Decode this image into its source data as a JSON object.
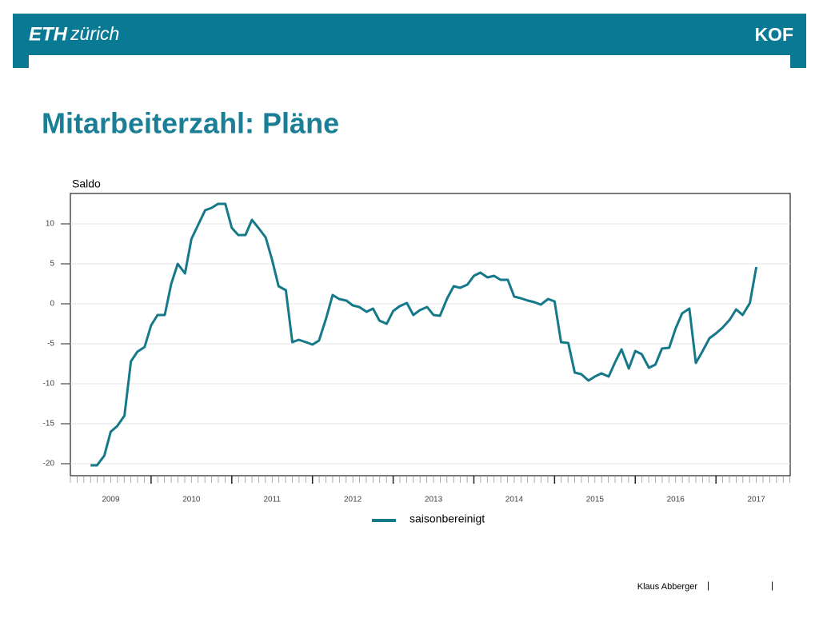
{
  "header": {
    "logo_left": "ETH",
    "logo_left_suffix": "zürich",
    "logo_right": "KOF"
  },
  "title": "Mitarbeiterzahl: Pläne",
  "footer": {
    "author": "Klaus Abberger",
    "separator": "|"
  },
  "chart_data": {
    "type": "line",
    "y_label": "Saldo",
    "x": [
      2009.25,
      2009.33,
      2009.42,
      2009.5,
      2009.58,
      2009.67,
      2009.75,
      2009.83,
      2009.92,
      2010,
      2010.08,
      2010.17,
      2010.25,
      2010.33,
      2010.42,
      2010.5,
      2010.58,
      2010.67,
      2010.75,
      2010.83,
      2010.92,
      2011,
      2011.08,
      2011.17,
      2011.25,
      2011.33,
      2011.42,
      2011.5,
      2011.58,
      2011.67,
      2011.75,
      2011.83,
      2011.92,
      2012,
      2012.08,
      2012.17,
      2012.25,
      2012.33,
      2012.42,
      2012.5,
      2012.58,
      2012.67,
      2012.75,
      2012.83,
      2012.92,
      2013,
      2013.08,
      2013.17,
      2013.25,
      2013.33,
      2013.42,
      2013.5,
      2013.58,
      2013.67,
      2013.75,
      2013.83,
      2013.92,
      2014,
      2014.08,
      2014.17,
      2014.25,
      2014.33,
      2014.42,
      2014.5,
      2014.58,
      2014.67,
      2014.75,
      2014.83,
      2014.92,
      2015,
      2015.08,
      2015.17,
      2015.25,
      2015.33,
      2015.42,
      2015.5,
      2015.58,
      2015.67,
      2015.75,
      2015.83,
      2015.92,
      2016,
      2016.08,
      2016.17,
      2016.25,
      2016.33,
      2016.42,
      2016.5,
      2016.58,
      2016.67,
      2016.75,
      2016.83,
      2016.92,
      2017,
      2017.08,
      2017.17,
      2017.25,
      2017.33,
      2017.42,
      2017.5
    ],
    "series": [
      {
        "name": "saisonbereinigt",
        "color": "#16798a",
        "values": [
          -20.2,
          -20.2,
          -19,
          -16,
          -15.3,
          -14,
          -7.2,
          -6,
          -5.4,
          -2.7,
          -1.4,
          -1.4,
          2.5,
          5,
          3.8,
          8.1,
          9.8,
          11.7,
          12,
          12.5,
          12.5,
          9.5,
          8.6,
          8.6,
          10.5,
          9.5,
          8.3,
          5.5,
          2.2,
          1.7,
          -4.8,
          -4.5,
          -4.8,
          -5.1,
          -4.6,
          -1.8,
          1.1,
          0.6,
          0.4,
          -0.2,
          -0.4,
          -1,
          -0.6,
          -2.1,
          -2.5,
          -0.9,
          -0.3,
          0.1,
          -1.4,
          -0.8,
          -0.4,
          -1.4,
          -1.5,
          0.7,
          2.2,
          2,
          2.4,
          3.5,
          3.9,
          3.3,
          3.5,
          3,
          3,
          0.9,
          0.7,
          0.4,
          0.2,
          -0.1,
          0.6,
          0.3,
          -4.8,
          -4.9,
          -8.6,
          -8.8,
          -9.6,
          -9.1,
          -8.7,
          -9.1,
          -7.3,
          -5.7,
          -8.1,
          -5.9,
          -6.3,
          -8,
          -7.6,
          -5.6,
          -5.5,
          -3.1,
          -1.2,
          -0.6,
          -7.4,
          -6,
          -4.3,
          -3.7,
          -3,
          -2,
          -0.7,
          -1.4,
          0.1,
          4.6
        ]
      }
    ],
    "xlim": [
      2009,
      2017.92
    ],
    "xticks": [
      {
        "value": 2009.5,
        "label": "2009"
      },
      {
        "value": 2010.5,
        "label": "2010"
      },
      {
        "value": 2011.5,
        "label": "2011"
      },
      {
        "value": 2012.5,
        "label": "2012"
      },
      {
        "value": 2013.5,
        "label": "2013"
      },
      {
        "value": 2014.5,
        "label": "2014"
      },
      {
        "value": 2015.5,
        "label": "2015"
      },
      {
        "value": 2016.5,
        "label": "2016"
      },
      {
        "value": 2017.5,
        "label": "2017"
      }
    ],
    "ylim": [
      -21.5,
      13.8
    ],
    "yticks": [
      -20,
      -15,
      -10,
      -5,
      0,
      5,
      10
    ],
    "grid": true,
    "legend": "bottom"
  }
}
